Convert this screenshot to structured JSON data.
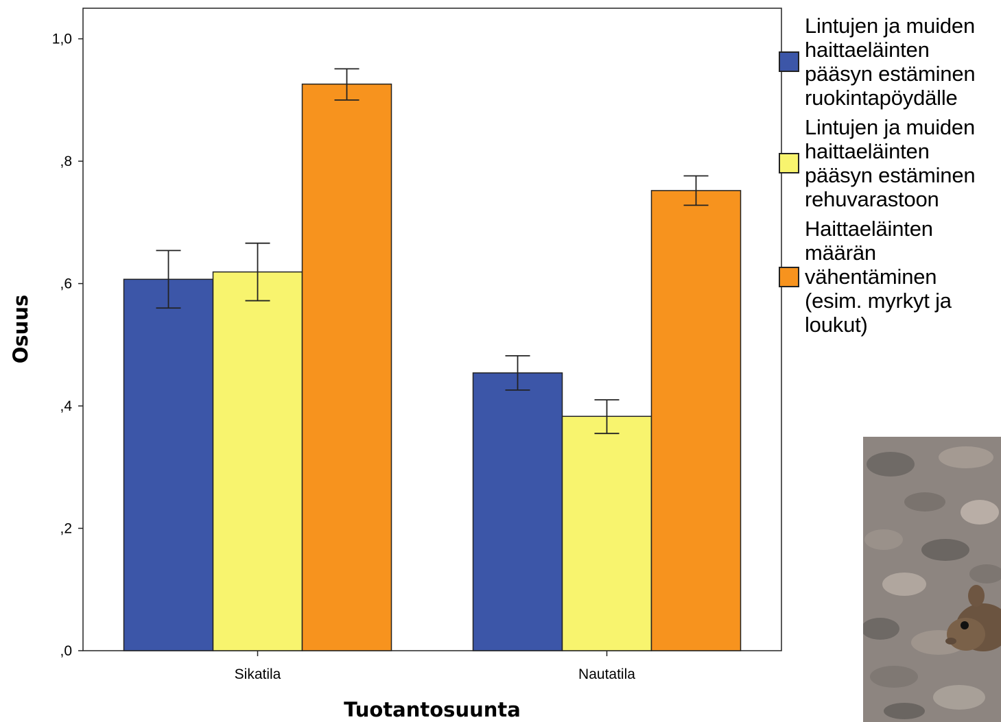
{
  "chart_data": {
    "type": "bar",
    "xlabel": "Tuotantosuunta",
    "ylabel": "Osuus",
    "ylim": [
      0,
      1.05
    ],
    "yticks": [
      0,
      0.2,
      0.4,
      0.6,
      0.8,
      1.0
    ],
    "ytick_labels": [
      ",0",
      ",2",
      ",4",
      ",6",
      ",8",
      "1,0"
    ],
    "categories": [
      "Sikatila",
      "Nautatila"
    ],
    "series": [
      {
        "name": "Lintujen ja muiden haittaeläinten pääsyn estäminen ruokintapöydälle",
        "color": "#3c56a8",
        "values": [
          0.607,
          0.454
        ],
        "error_low": [
          0.56,
          0.426
        ],
        "error_high": [
          0.654,
          0.482
        ]
      },
      {
        "name": "Lintujen ja muiden haittaeläinten pääsyn estäminen rehuvarastoon",
        "color": "#f8f46e",
        "values": [
          0.619,
          0.383
        ],
        "error_low": [
          0.572,
          0.355
        ],
        "error_high": [
          0.666,
          0.41
        ]
      },
      {
        "name": "Haittaeläinten määrän vähentäminen (esim. myrkyt ja loukut)",
        "color": "#f7931e",
        "values": [
          0.926,
          0.752
        ],
        "error_low": [
          0.9,
          0.728
        ],
        "error_high": [
          0.951,
          0.776
        ]
      }
    ],
    "legend_position": "right",
    "grid": false
  },
  "legend": {
    "item1_lines": [
      "Lintujen ja muiden",
      "haittaeläinten",
      "pääsyn estäminen",
      "ruokintapöydälle"
    ],
    "item2_lines": [
      "Lintujen ja muiden",
      "haittaeläinten",
      "pääsyn estäminen",
      "rehuvarastoon"
    ],
    "item3_lines": [
      "Haittaeläinten",
      "määrän",
      "vähentäminen",
      "(esim. myrkyt ja",
      "loukut)"
    ]
  },
  "photo": {
    "icon": "mouse-on-gravel-photo"
  }
}
